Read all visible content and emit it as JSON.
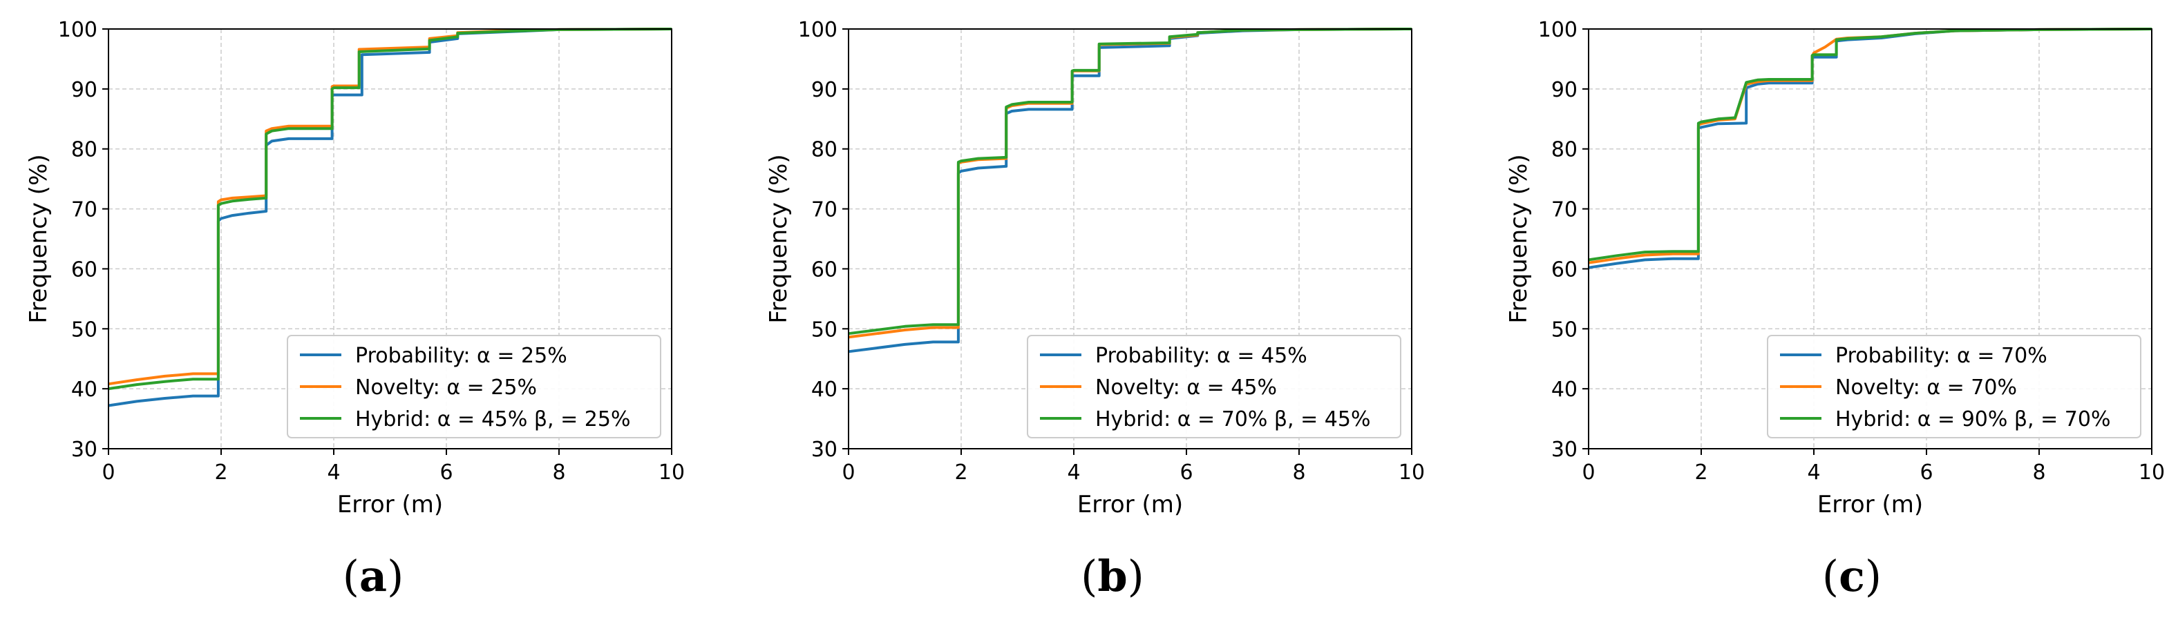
{
  "colors": {
    "Probability": "#1f77b4",
    "Novelty": "#ff7f0e",
    "Hybrid": "#2ca02c",
    "grid": "#cccccc"
  },
  "chart_data": [
    {
      "type": "line",
      "panel": "a",
      "caption_open": "(",
      "caption_letter": "a",
      "caption_close": ")",
      "xlabel": "Error (m)",
      "ylabel": "Frequency (%)",
      "xlim": [
        0,
        10
      ],
      "ylim": [
        30,
        100
      ],
      "xticks": [
        "0",
        "2",
        "4",
        "6",
        "8",
        "10"
      ],
      "yticks": [
        "30",
        "40",
        "50",
        "60",
        "70",
        "80",
        "90",
        "100"
      ],
      "grid": true,
      "legend_position": "lower-right",
      "series": [
        {
          "name": "Probability: α = 25%",
          "key": "Probability",
          "x": [
            0,
            0.5,
            1,
            1.5,
            1.95,
            1.95,
            2.0,
            2.2,
            2.5,
            2.8,
            2.8,
            2.9,
            3.2,
            3.97,
            3.97,
            4.0,
            4.5,
            4.5,
            5.7,
            5.7,
            6.2,
            6.2,
            7.0,
            8,
            10
          ],
          "y": [
            37.2,
            37.9,
            38.4,
            38.8,
            38.8,
            68.0,
            68.4,
            68.9,
            69.3,
            69.6,
            80.6,
            81.3,
            81.7,
            81.7,
            88.8,
            89.0,
            89.0,
            95.7,
            96.1,
            97.8,
            98.4,
            99.2,
            99.5,
            99.9,
            100.0
          ]
        },
        {
          "name": "Novelty: α = 25%",
          "key": "Novelty",
          "x": [
            0,
            0.5,
            1,
            1.5,
            1.95,
            1.95,
            2.0,
            2.2,
            2.5,
            2.8,
            2.8,
            2.9,
            3.2,
            3.97,
            3.97,
            4.0,
            4.45,
            4.45,
            5.7,
            5.7,
            6.2,
            6.2,
            7.0,
            8,
            10
          ],
          "y": [
            40.8,
            41.5,
            42.1,
            42.5,
            42.5,
            71.2,
            71.5,
            71.8,
            72.0,
            72.2,
            83.0,
            83.4,
            83.8,
            83.8,
            90.4,
            90.5,
            90.5,
            96.6,
            97.0,
            98.4,
            98.9,
            99.4,
            99.7,
            99.9,
            100.0
          ]
        },
        {
          "name": "Hybrid: α = 45% β, = 25%",
          "key": "Hybrid",
          "x": [
            0,
            0.5,
            1,
            1.5,
            1.95,
            1.95,
            2.0,
            2.2,
            2.5,
            2.8,
            2.8,
            2.9,
            3.2,
            3.97,
            3.97,
            4.0,
            4.45,
            4.45,
            5.7,
            5.7,
            6.2,
            6.2,
            7.0,
            8,
            10
          ],
          "y": [
            40.0,
            40.7,
            41.2,
            41.6,
            41.6,
            70.6,
            70.9,
            71.3,
            71.6,
            71.8,
            82.5,
            83.0,
            83.4,
            83.4,
            90.0,
            90.2,
            90.2,
            96.2,
            96.7,
            98.1,
            98.7,
            99.3,
            99.6,
            99.9,
            100.0
          ]
        }
      ]
    },
    {
      "type": "line",
      "panel": "b",
      "caption_open": "(",
      "caption_letter": "b",
      "caption_close": ")",
      "xlabel": "Error (m)",
      "ylabel": "Frequency (%)",
      "xlim": [
        0,
        10
      ],
      "ylim": [
        30,
        100
      ],
      "xticks": [
        "0",
        "2",
        "4",
        "6",
        "8",
        "10"
      ],
      "yticks": [
        "30",
        "40",
        "50",
        "60",
        "70",
        "80",
        "90",
        "100"
      ],
      "grid": true,
      "legend_position": "lower-right",
      "series": [
        {
          "name": "Probability: α = 45%",
          "key": "Probability",
          "x": [
            0,
            0.5,
            1,
            1.5,
            1.95,
            1.95,
            2.0,
            2.3,
            2.8,
            2.8,
            2.9,
            3.2,
            3.97,
            3.97,
            4.0,
            4.45,
            4.45,
            5.7,
            5.7,
            6.2,
            6.2,
            7.0,
            8,
            10
          ],
          "y": [
            46.2,
            46.8,
            47.4,
            47.8,
            47.8,
            76.0,
            76.3,
            76.8,
            77.1,
            85.9,
            86.3,
            86.6,
            86.6,
            92.0,
            92.2,
            92.2,
            96.9,
            97.2,
            98.4,
            98.9,
            99.3,
            99.7,
            99.9,
            100.0
          ]
        },
        {
          "name": "Novelty: α = 45%",
          "key": "Novelty",
          "x": [
            0,
            0.5,
            1,
            1.5,
            1.95,
            1.95,
            2.0,
            2.3,
            2.8,
            2.8,
            2.9,
            3.2,
            3.97,
            3.97,
            4.0,
            4.45,
            4.45,
            5.7,
            5.7,
            6.2,
            6.2,
            7.0,
            8,
            10
          ],
          "y": [
            48.6,
            49.2,
            49.8,
            50.2,
            50.2,
            77.6,
            77.8,
            78.2,
            78.4,
            86.8,
            87.2,
            87.6,
            87.6,
            92.9,
            93.0,
            93.0,
            97.4,
            97.6,
            98.6,
            99.0,
            99.4,
            99.8,
            99.9,
            100.0
          ]
        },
        {
          "name": "Hybrid: α = 70% β, = 45%",
          "key": "Hybrid",
          "x": [
            0,
            0.5,
            1,
            1.5,
            1.95,
            1.95,
            2.0,
            2.3,
            2.8,
            2.8,
            2.9,
            3.2,
            3.97,
            3.97,
            4.0,
            4.45,
            4.45,
            5.7,
            5.7,
            6.2,
            6.2,
            7.0,
            8,
            10
          ],
          "y": [
            49.2,
            49.8,
            50.4,
            50.7,
            50.7,
            77.8,
            78.0,
            78.4,
            78.6,
            87.0,
            87.4,
            87.8,
            87.8,
            93.0,
            93.1,
            93.1,
            97.5,
            97.7,
            98.7,
            99.1,
            99.4,
            99.8,
            99.9,
            100.0
          ]
        }
      ]
    },
    {
      "type": "line",
      "panel": "c",
      "caption_open": "(",
      "caption_letter": "c",
      "caption_close": ")",
      "xlabel": "Error (m)",
      "ylabel": "Frequency (%)",
      "xlim": [
        0,
        10
      ],
      "ylim": [
        30,
        100
      ],
      "xticks": [
        "0",
        "2",
        "4",
        "6",
        "8",
        "10"
      ],
      "yticks": [
        "30",
        "40",
        "50",
        "60",
        "70",
        "80",
        "90",
        "100"
      ],
      "grid": true,
      "legend_position": "lower-right",
      "series": [
        {
          "name": "Probability: α = 70%",
          "key": "Probability",
          "x": [
            0,
            0.5,
            1,
            1.5,
            1.95,
            1.95,
            2.0,
            2.3,
            2.8,
            2.8,
            3.0,
            3.2,
            3.97,
            3.97,
            4.0,
            4.4,
            4.4,
            4.6,
            5.2,
            5.8,
            6.5,
            8,
            10
          ],
          "y": [
            60.2,
            60.9,
            61.5,
            61.7,
            61.7,
            83.5,
            83.6,
            84.2,
            84.3,
            90.2,
            90.8,
            91.0,
            91.0,
            95.2,
            95.3,
            95.3,
            98.0,
            98.2,
            98.5,
            99.2,
            99.7,
            99.9,
            100.0
          ]
        },
        {
          "name": "Novelty: α = 70%",
          "key": "Novelty",
          "x": [
            0,
            0.5,
            1,
            1.5,
            1.95,
            1.95,
            2.0,
            2.3,
            2.6,
            2.8,
            3.0,
            3.2,
            3.97,
            3.97,
            4.0,
            4.2,
            4.4,
            4.6,
            5.2,
            5.8,
            6.5,
            8,
            10
          ],
          "y": [
            61.0,
            61.7,
            62.3,
            62.5,
            62.5,
            84.0,
            84.2,
            84.8,
            85.0,
            90.8,
            91.2,
            91.4,
            91.4,
            95.5,
            96.0,
            97.0,
            98.3,
            98.5,
            98.7,
            99.3,
            99.7,
            99.9,
            100.0
          ]
        },
        {
          "name": "Hybrid: α = 90% β, = 70%",
          "key": "Hybrid",
          "x": [
            0,
            0.5,
            1,
            1.5,
            1.95,
            1.95,
            2.0,
            2.3,
            2.6,
            2.8,
            3.0,
            3.2,
            3.97,
            3.97,
            4.0,
            4.4,
            4.4,
            4.6,
            5.2,
            5.8,
            6.5,
            8,
            10
          ],
          "y": [
            61.5,
            62.2,
            62.8,
            62.9,
            62.9,
            84.3,
            84.5,
            85.0,
            85.2,
            91.1,
            91.5,
            91.6,
            91.6,
            95.6,
            95.7,
            95.7,
            98.2,
            98.4,
            98.7,
            99.3,
            99.7,
            99.9,
            100.0
          ]
        }
      ]
    }
  ]
}
